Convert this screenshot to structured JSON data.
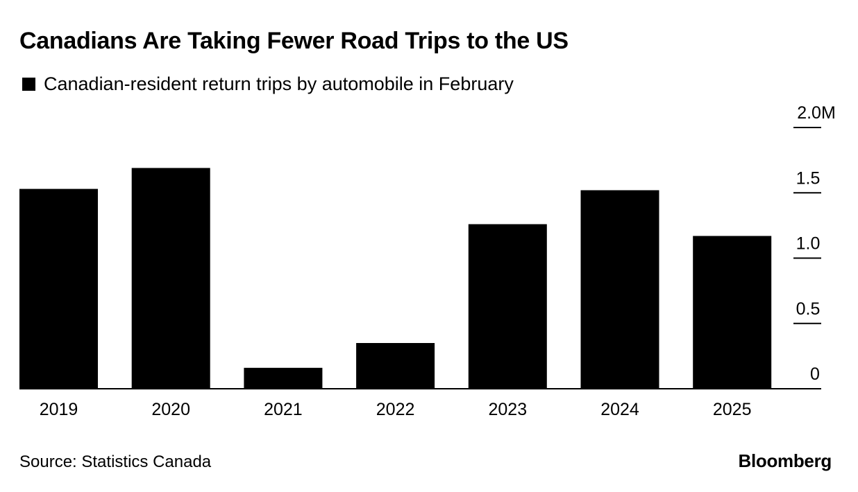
{
  "chart_data": {
    "type": "bar",
    "title": "Canadians Are Taking Fewer Road Trips to the US",
    "legend": [
      {
        "label": "Canadian-resident return trips by automobile in February",
        "color": "#000000"
      }
    ],
    "categories": [
      "2019",
      "2020",
      "2021",
      "2022",
      "2023",
      "2024",
      "2025"
    ],
    "series": [
      {
        "name": "Canadian-resident return trips by automobile in February",
        "values": [
          1.53,
          1.69,
          0.16,
          0.35,
          1.26,
          1.52,
          1.17
        ]
      }
    ],
    "unit": "M",
    "xlabel": "",
    "ylabel": "",
    "ylim": [
      0,
      2.0
    ],
    "yticks": [
      {
        "value": 0,
        "label": "0"
      },
      {
        "value": 0.5,
        "label": "0.5"
      },
      {
        "value": 1.0,
        "label": "1.0"
      },
      {
        "value": 1.5,
        "label": "1.5"
      },
      {
        "value": 2.0,
        "label": "2.0M"
      }
    ],
    "y_axis_position": "right",
    "grid": false,
    "bar_color": "#000000"
  },
  "source": "Source: Statistics Canada",
  "brand": "Bloomberg"
}
